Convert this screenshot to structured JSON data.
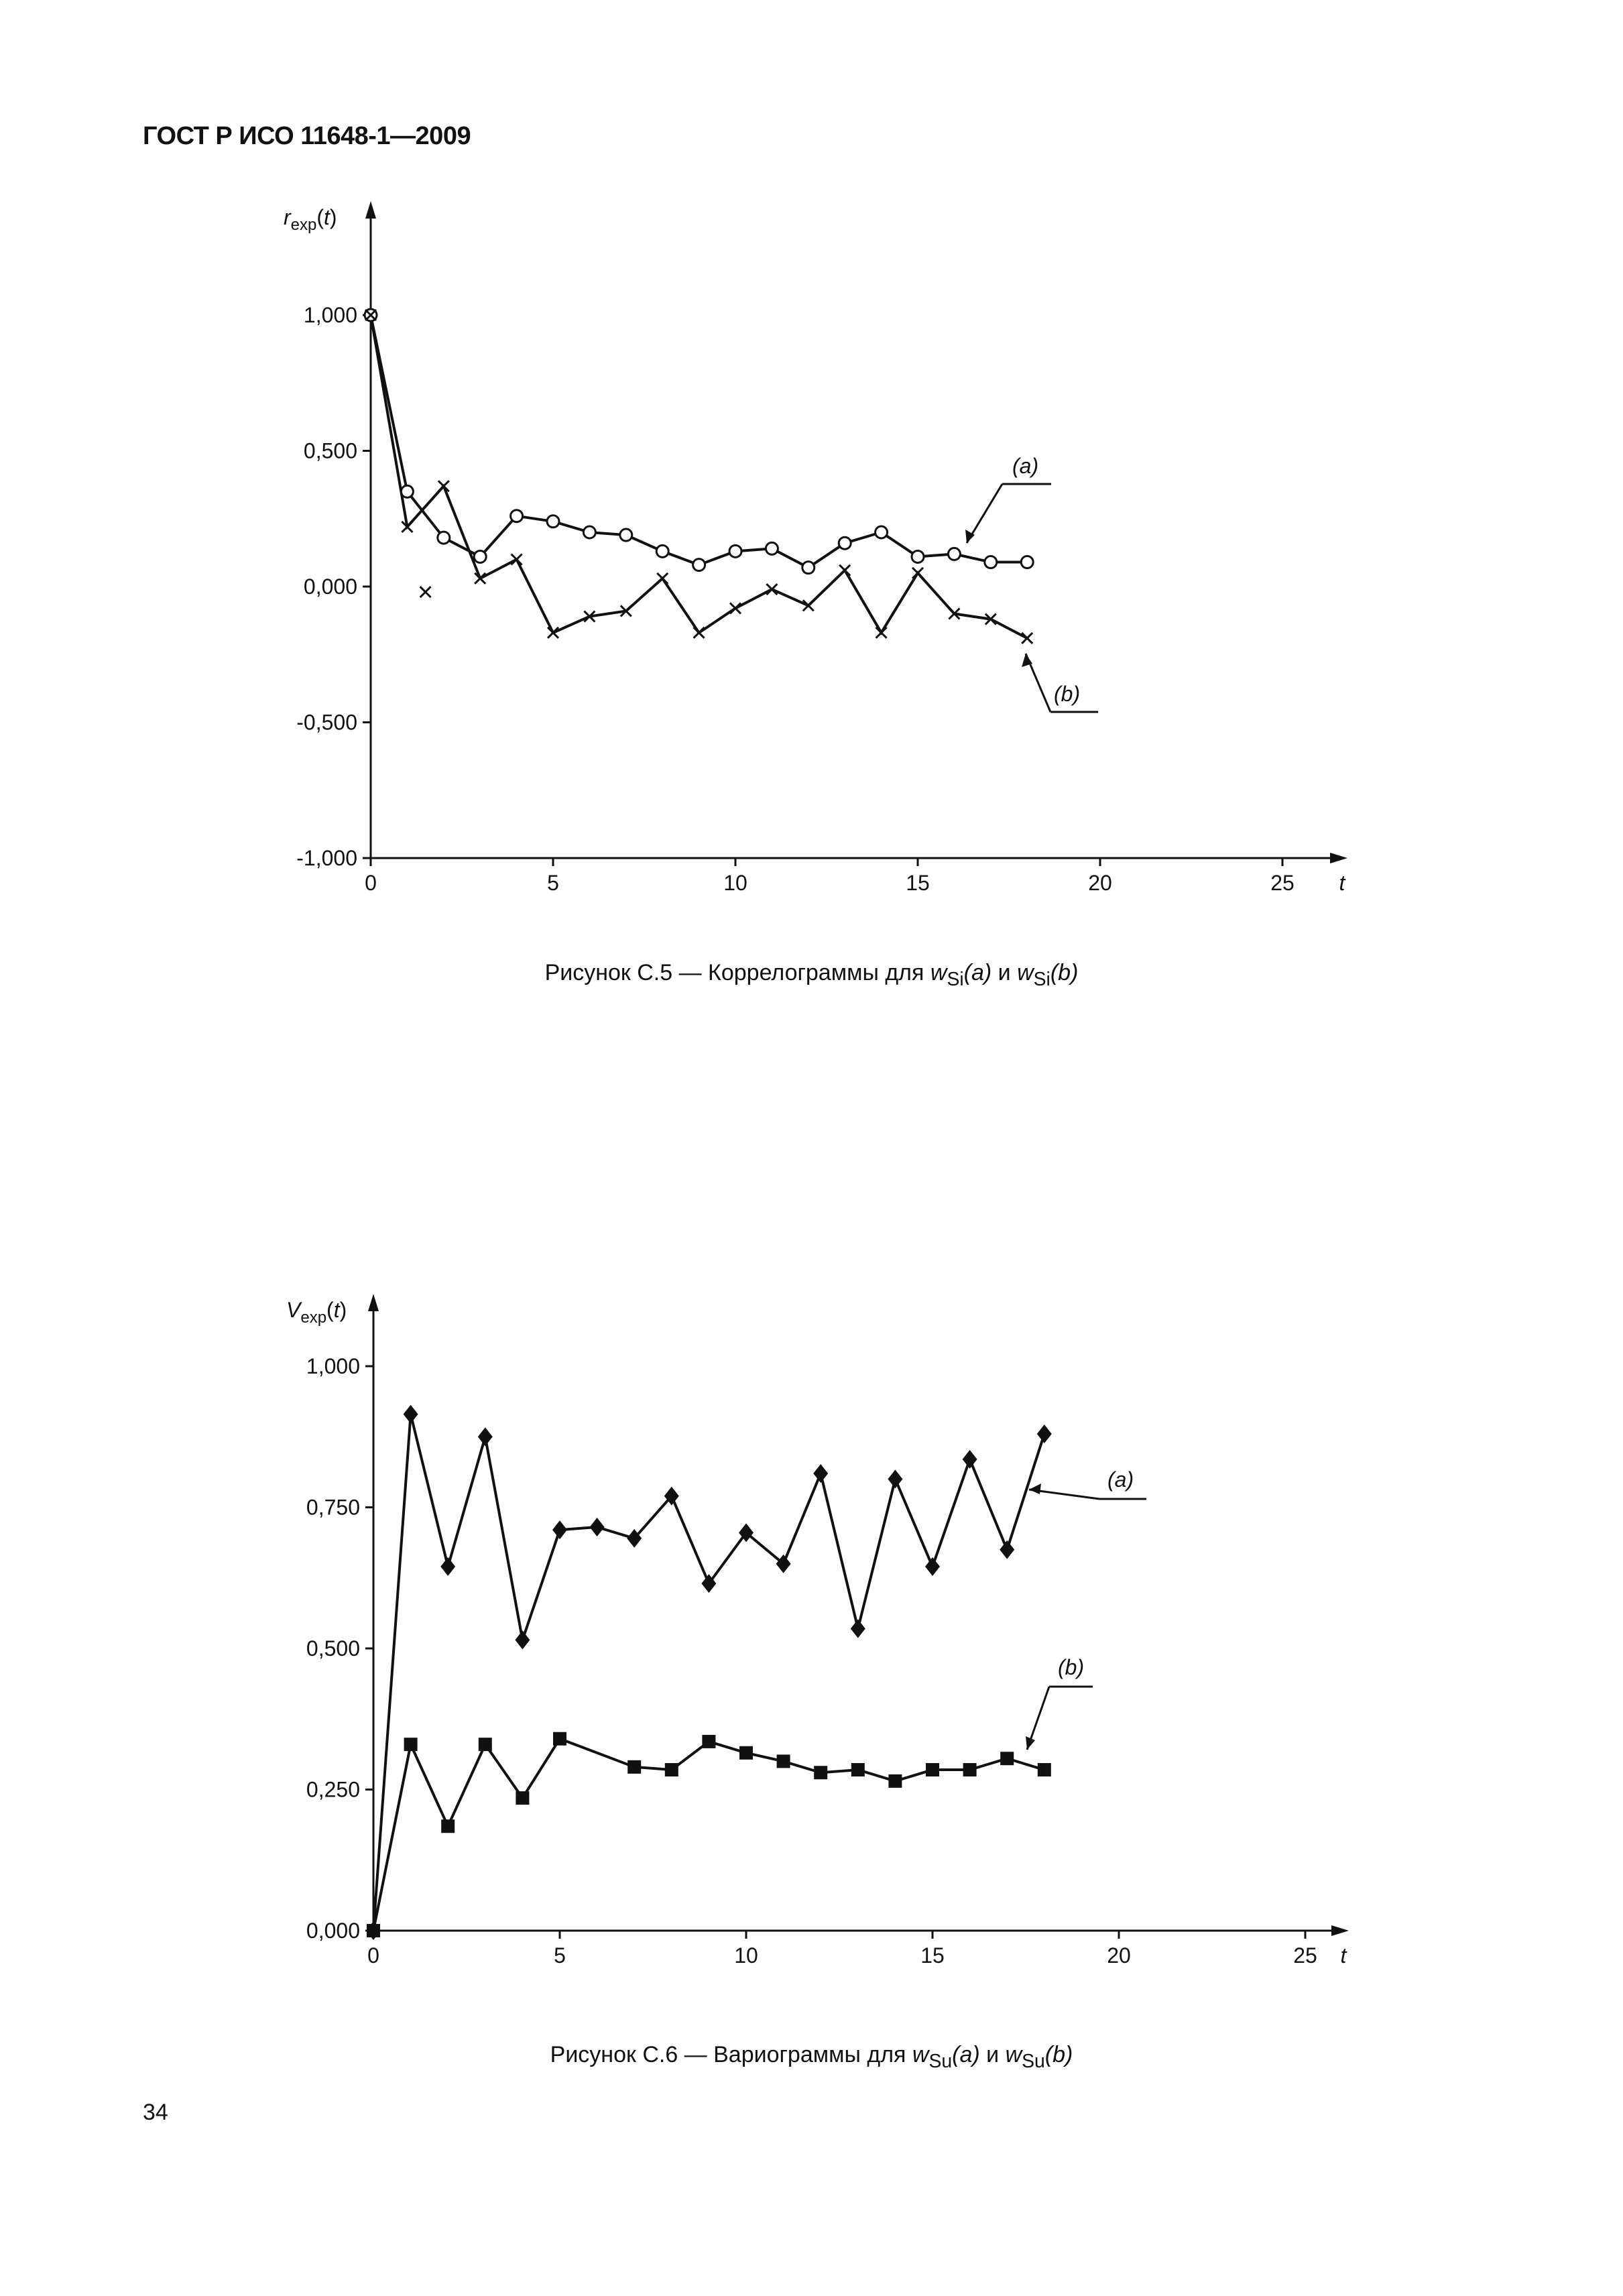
{
  "header": "ГОСТ Р ИСО 11648-1—2009",
  "page_number": "34",
  "chart_data": [
    {
      "type": "line",
      "ylabel": "r",
      "ylabel_sub": "exp",
      "ylabel_arg": "(t)",
      "xlabel": "t",
      "xlim": [
        0,
        27
      ],
      "ylim": [
        -1,
        1
      ],
      "xticks": [
        "0",
        "5",
        "10",
        "15",
        "20",
        "25"
      ],
      "xtick_values": [
        0,
        5,
        10,
        15,
        20,
        25
      ],
      "yticks": [
        "1,000",
        "0,500",
        "0,000",
        "-0,500",
        "-1,000"
      ],
      "ytick_values": [
        1,
        0.5,
        0,
        -0.5,
        -1
      ],
      "series": [
        {
          "name": "(a)",
          "marker": "open-circle",
          "x": [
            0,
            1,
            2,
            3,
            4,
            5,
            6,
            7,
            8,
            9,
            10,
            11,
            12,
            13,
            14,
            15,
            16,
            17,
            18
          ],
          "y": [
            1.0,
            0.35,
            0.18,
            0.11,
            0.26,
            0.24,
            0.2,
            0.19,
            0.13,
            0.08,
            0.13,
            0.14,
            0.07,
            0.16,
            0.2,
            0.11,
            0.12,
            0.09,
            0.09
          ]
        },
        {
          "name": "(b)",
          "marker": "x",
          "x": [
            0,
            1,
            2,
            3,
            4,
            5,
            6,
            7,
            8,
            9,
            10,
            11,
            12,
            13,
            14,
            15,
            16,
            17,
            18
          ],
          "y": [
            1.0,
            0.22,
            0.37,
            0.03,
            0.1,
            -0.17,
            -0.11,
            -0.09,
            0.03,
            -0.17,
            -0.08,
            -0.01,
            -0.07,
            0.06,
            -0.17,
            0.05,
            -0.1,
            -0.12,
            -0.19
          ]
        }
      ],
      "extra_points": [
        {
          "x": 1.5,
          "y": -0.02,
          "marker": "x"
        }
      ],
      "caption_prefix": "Рисунок С.5 — Коррелограммы для ",
      "caption_var": "w",
      "caption_sub": "Si",
      "caption_a": "(a)",
      "caption_and": " и ",
      "caption_b": "(b)"
    },
    {
      "type": "line",
      "ylabel": "V",
      "ylabel_sub": "exp",
      "ylabel_arg": "(t)",
      "xlabel": "t",
      "xlim": [
        0,
        27
      ],
      "ylim": [
        0,
        1
      ],
      "xticks": [
        "0",
        "5",
        "10",
        "15",
        "20",
        "25"
      ],
      "xtick_values": [
        0,
        5,
        10,
        15,
        20,
        25
      ],
      "yticks": [
        "1,000",
        "0,750",
        "0,500",
        "0,250",
        "0,000"
      ],
      "ytick_values": [
        1,
        0.75,
        0.5,
        0.25,
        0
      ],
      "series": [
        {
          "name": "(a)",
          "marker": "diamond",
          "x": [
            0,
            1,
            2,
            3,
            4,
            5,
            6,
            7,
            8,
            9,
            10,
            11,
            12,
            13,
            14,
            15,
            16,
            17,
            18
          ],
          "y": [
            0.0,
            0.915,
            0.645,
            0.875,
            0.515,
            0.71,
            0.715,
            0.695,
            0.77,
            0.615,
            0.705,
            0.65,
            0.81,
            0.535,
            0.8,
            0.645,
            0.835,
            0.675,
            0.88
          ]
        },
        {
          "name": "(b)",
          "marker": "square",
          "x": [
            0,
            1,
            2,
            3,
            4,
            5,
            7,
            8,
            9,
            10,
            11,
            12,
            13,
            14,
            15,
            16,
            17,
            18
          ],
          "y": [
            0.0,
            0.33,
            0.185,
            0.33,
            0.235,
            0.34,
            0.29,
            0.285,
            0.335,
            0.315,
            0.3,
            0.28,
            0.285,
            0.265,
            0.285,
            0.285,
            0.305,
            0.285
          ]
        }
      ],
      "caption_prefix": "Рисунок С.6 — Вариограммы для ",
      "caption_var": "w",
      "caption_sub": "Su",
      "caption_a": "(a)",
      "caption_and": " и ",
      "caption_b": "(b)"
    }
  ]
}
